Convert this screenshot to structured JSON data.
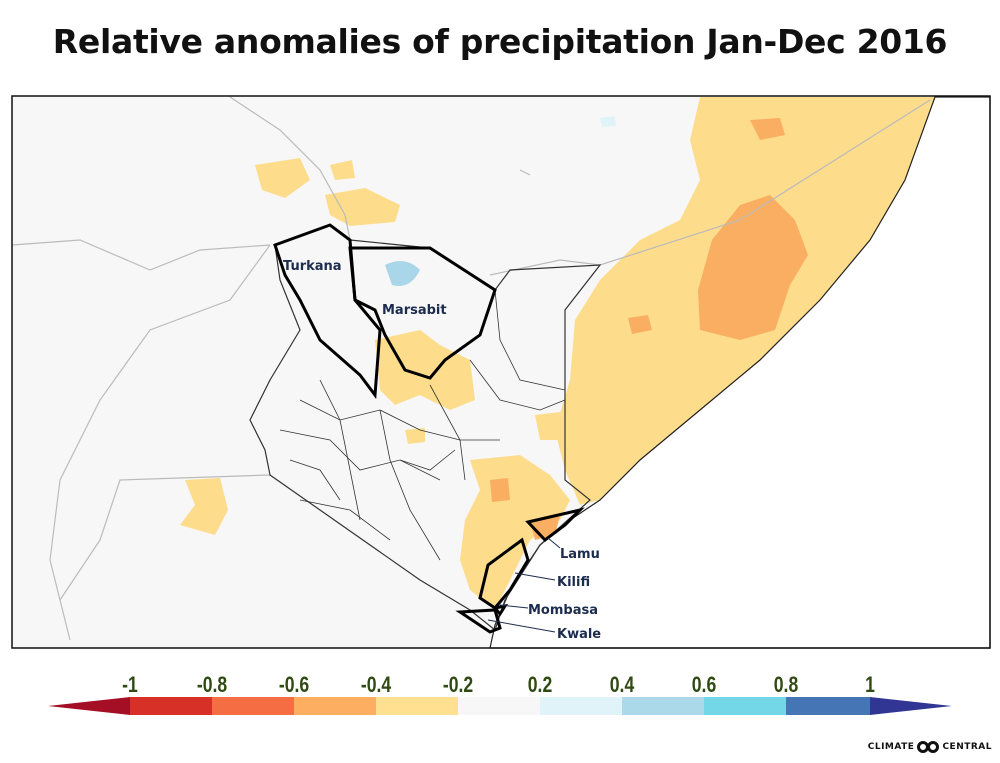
{
  "title": "Relative anomalies of precipitation Jan-Dec 2016",
  "map": {
    "region": "Kenya",
    "highlighted_counties": [
      "Turkana",
      "Marsabit",
      "Lamu",
      "Kilifi",
      "Mombasa",
      "Kwale"
    ],
    "colors": {
      "land": "#f7f7f7",
      "ocean": "#ffffff",
      "dry_light": "#fddc8c",
      "dry_mid": "#f9ae62",
      "wet_light": "#a9d6e8"
    }
  },
  "legend": {
    "ticks": [
      "-1",
      "-0.8",
      "-0.6",
      "-0.4",
      "-0.2",
      "0.2",
      "0.4",
      "0.6",
      "0.8",
      "1"
    ],
    "colors": [
      "#a50f25",
      "#d73027",
      "#f46d43",
      "#fdae61",
      "#fee090",
      "#f7f7f7",
      "#e0f3f8",
      "#abd9e9",
      "#74d7e8",
      "#4575b4",
      "#313695"
    ]
  },
  "logo": {
    "left": "CLIMATE",
    "right": "CENTRAL"
  }
}
